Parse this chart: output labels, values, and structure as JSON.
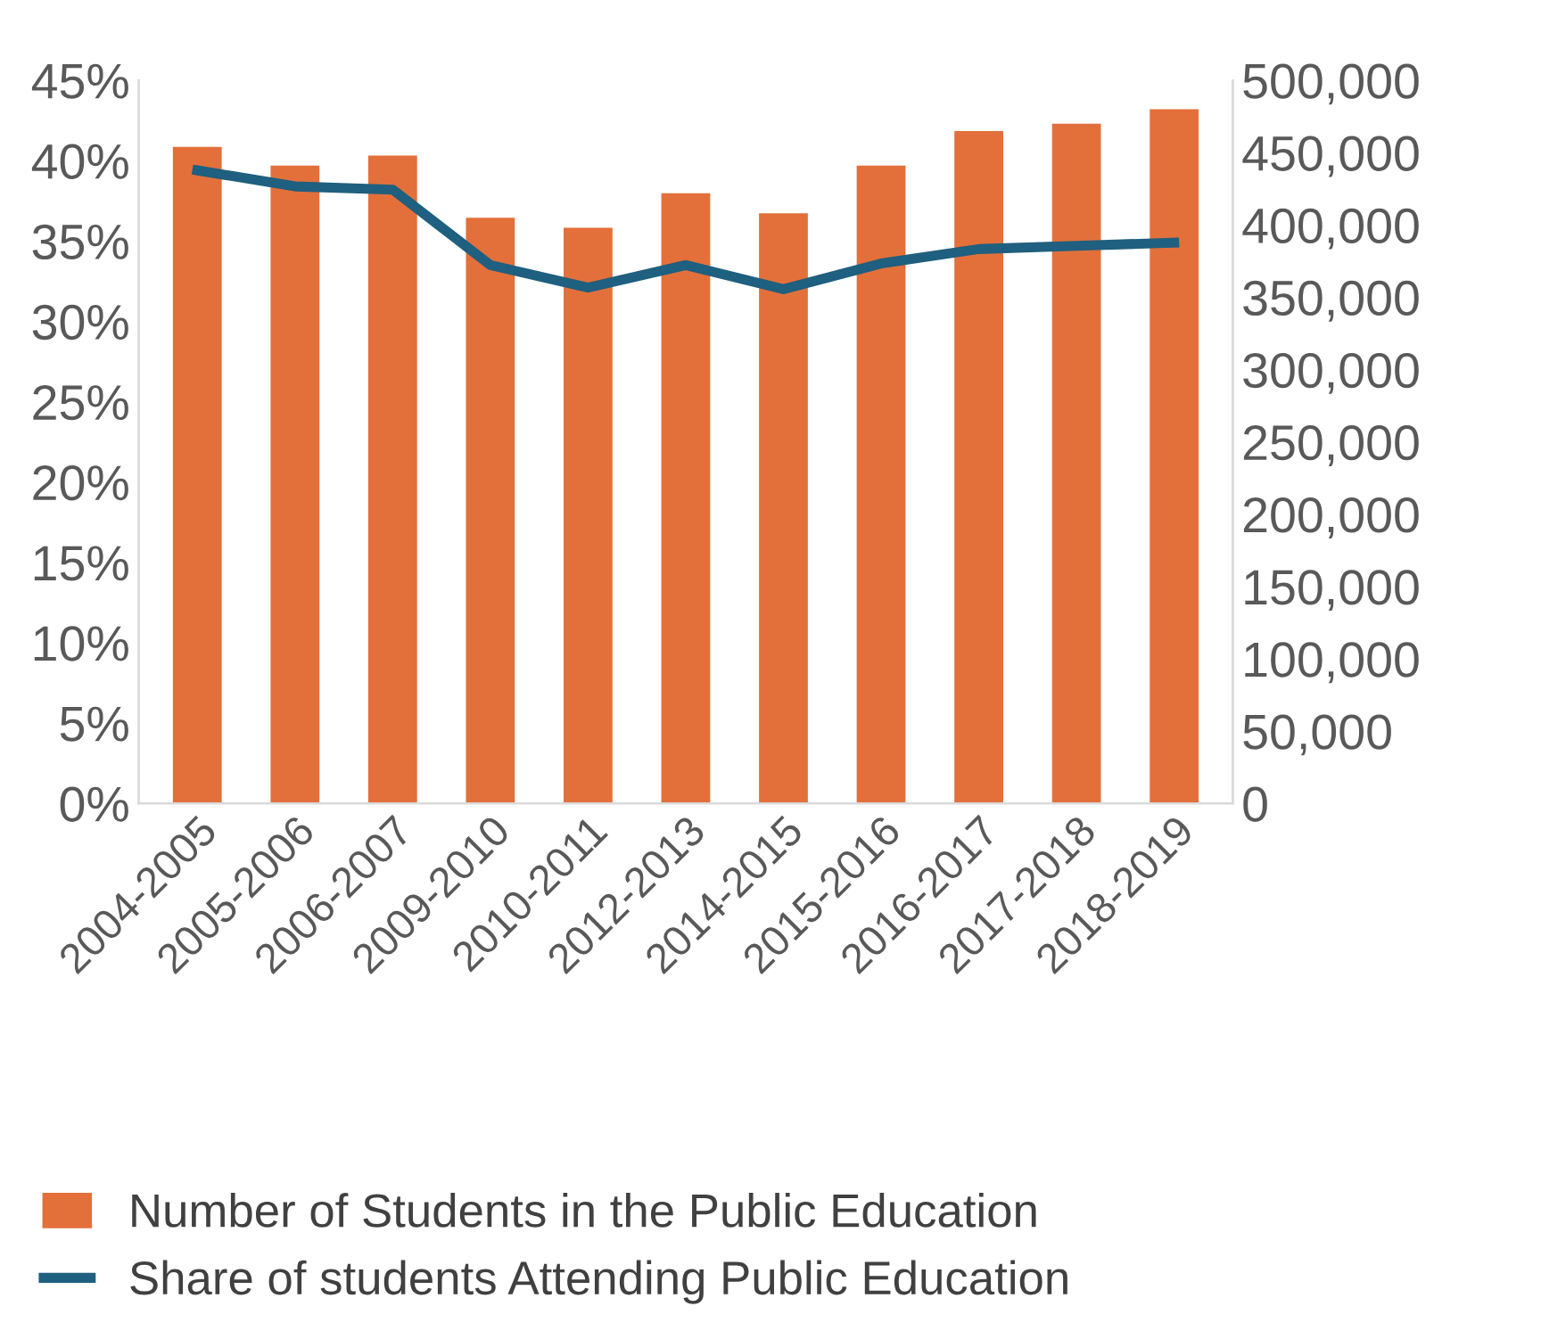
{
  "chart_data": {
    "type": "bar",
    "categories": [
      "2004-2005",
      "2005-2006",
      "2006-2007",
      "2009-2010",
      "2010-2011",
      "2012-2013",
      "2014-2015",
      "2015-2016",
      "2016-2017",
      "2017-2018",
      "2018-2019"
    ],
    "series": [
      {
        "name": "Number of Students in the Public Education",
        "axis": "y2",
        "color": "#e3703a",
        "values": [
          454000,
          441000,
          448000,
          405000,
          398000,
          422000,
          408000,
          441000,
          465000,
          470000,
          480000
        ]
      },
      {
        "name": "Share of students Attending Public Education",
        "type": "line",
        "axis": "y",
        "color": "#1f5f7f",
        "values": [
          39.4,
          38.4,
          38.2,
          33.5,
          32.1,
          33.5,
          32.0,
          33.6,
          34.5,
          34.7,
          34.9
        ]
      }
    ],
    "ylim": [
      0,
      45
    ],
    "yticks": [
      {
        "value": 0,
        "label": "0%"
      },
      {
        "value": 5,
        "label": "5%"
      },
      {
        "value": 10,
        "label": "10%"
      },
      {
        "value": 15,
        "label": "15%"
      },
      {
        "value": 20,
        "label": "20%"
      },
      {
        "value": 25,
        "label": "25%"
      },
      {
        "value": 30,
        "label": "30%"
      },
      {
        "value": 35,
        "label": "35%"
      },
      {
        "value": 40,
        "label": "40%"
      },
      {
        "value": 45,
        "label": "45%"
      }
    ],
    "y2lim": [
      0,
      500000
    ],
    "y2ticks": [
      0,
      {
        "value": 50000,
        "label": "50,000"
      },
      {
        "value": 100000,
        "label": "100,000"
      },
      {
        "value": 150000,
        "label": "150,000"
      },
      {
        "value": 200000,
        "label": "200,000"
      },
      {
        "value": 250000,
        "label": "250,000"
      },
      {
        "value": 300000,
        "label": "300,000"
      },
      {
        "value": 350000,
        "label": "350,000"
      },
      {
        "value": 400000,
        "label": "400,000"
      },
      {
        "value": 450000,
        "label": "450,000"
      },
      {
        "value": 500000,
        "label": "500,000"
      }
    ],
    "grid": false,
    "legend": "bottom",
    "marker": "none",
    "line_style": "solid"
  }
}
